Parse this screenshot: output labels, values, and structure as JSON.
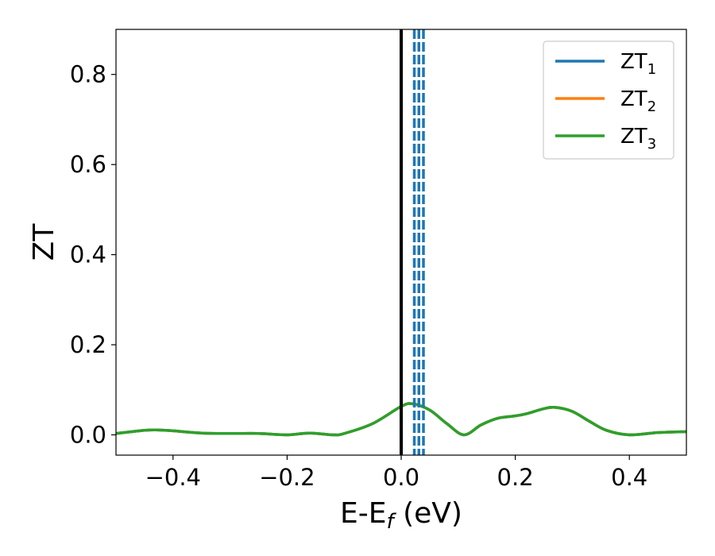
{
  "chart_data": {
    "type": "line",
    "xlabel": {
      "main": "E-E",
      "sub": "f",
      "unit": " (eV)"
    },
    "ylabel": "ZT",
    "xlim": [
      -0.5,
      0.5
    ],
    "ylim": [
      -0.045,
      0.9
    ],
    "xticks": [
      -0.4,
      -0.2,
      0.0,
      0.2,
      0.4
    ],
    "xtick_labels": [
      "−0.4",
      "−0.2",
      "0.0",
      "0.2",
      "0.4"
    ],
    "yticks": [
      0.0,
      0.2,
      0.4,
      0.6,
      0.8
    ],
    "ytick_labels": [
      "0.0",
      "0.2",
      "0.4",
      "0.6",
      "0.8"
    ],
    "grid": false,
    "legend_position": "top-right",
    "colors": {
      "zt1": "#1f77b4",
      "zt2": "#ff7f0e",
      "zt3": "#2ca02c",
      "fermi": "#000000",
      "dashed": "#1f77b4"
    },
    "vertical_lines": {
      "fermi_level": 0.0,
      "dashed": [
        0.023,
        0.031,
        0.039
      ]
    },
    "x": [
      -0.5,
      -0.45,
      -0.43,
      -0.4,
      -0.35,
      -0.3,
      -0.25,
      -0.2,
      -0.16,
      -0.12,
      -0.1,
      -0.05,
      0.0,
      0.02,
      0.05,
      0.08,
      0.11,
      0.14,
      0.17,
      0.2,
      0.22,
      0.25,
      0.27,
      0.3,
      0.33,
      0.36,
      0.4,
      0.45,
      0.5
    ],
    "series": [
      {
        "name": "ZT",
        "sub": "1",
        "color": "#1f77b4",
        "values": [
          0.003,
          0.01,
          0.011,
          0.009,
          0.004,
          0.003,
          0.003,
          0.0,
          0.004,
          0.0,
          0.003,
          0.025,
          0.063,
          0.069,
          0.055,
          0.025,
          0.0,
          0.022,
          0.037,
          0.042,
          0.047,
          0.058,
          0.061,
          0.052,
          0.03,
          0.01,
          0.0,
          0.005,
          0.007
        ]
      },
      {
        "name": "ZT",
        "sub": "2",
        "color": "#ff7f0e",
        "values": [
          0.003,
          0.01,
          0.011,
          0.009,
          0.004,
          0.003,
          0.003,
          0.0,
          0.004,
          0.0,
          0.003,
          0.025,
          0.063,
          0.069,
          0.055,
          0.025,
          0.0,
          0.022,
          0.037,
          0.042,
          0.047,
          0.058,
          0.061,
          0.052,
          0.03,
          0.01,
          0.0,
          0.005,
          0.007
        ]
      },
      {
        "name": "ZT",
        "sub": "3",
        "color": "#2ca02c",
        "values": [
          0.003,
          0.01,
          0.011,
          0.009,
          0.004,
          0.003,
          0.003,
          0.0,
          0.004,
          0.0,
          0.003,
          0.025,
          0.063,
          0.069,
          0.055,
          0.025,
          0.0,
          0.022,
          0.037,
          0.042,
          0.047,
          0.058,
          0.061,
          0.052,
          0.03,
          0.01,
          0.0,
          0.005,
          0.007
        ]
      }
    ]
  }
}
